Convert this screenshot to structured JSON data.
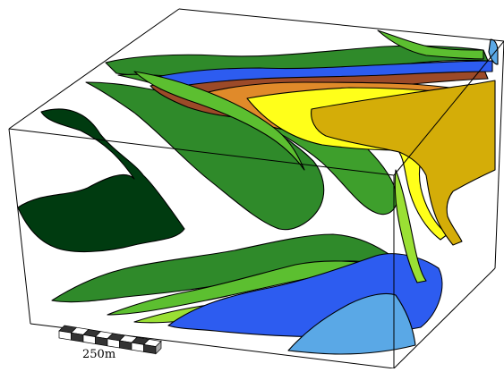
{
  "scale_bar": {
    "label": "250m",
    "segments": 8
  },
  "colors": {
    "dark_green": "#003b10",
    "forest_green": "#2f8a2a",
    "mid_green": "#3e9f2c",
    "light_green": "#5cbf30",
    "lime": "#9ae034",
    "royal_blue": "#2d5cf0",
    "sky_blue": "#5aa8e6",
    "brown": "#9c4a28",
    "orange": "#e08a2a",
    "yellow": "#ffff1a",
    "gold": "#d4ad08",
    "outline": "#000000",
    "background": "#ffffff"
  }
}
